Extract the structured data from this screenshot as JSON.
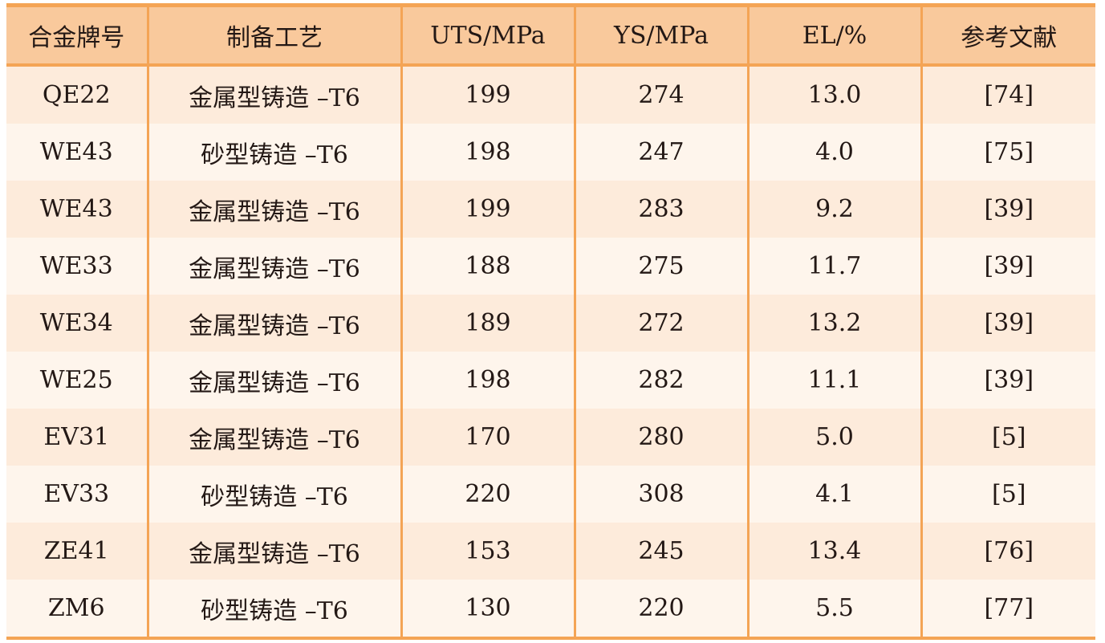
{
  "table": {
    "headers": [
      "合金牌号",
      "制备工艺",
      "UTS/MPa",
      "YS/MPa",
      "EL/%",
      "参考文献"
    ],
    "rows": [
      [
        "QE22",
        "金属型铸造 –T6",
        "199",
        "274",
        "13.0",
        "[74]"
      ],
      [
        "WE43",
        "砂型铸造 –T6",
        "198",
        "247",
        "4.0",
        "[75]"
      ],
      [
        "WE43",
        "金属型铸造 –T6",
        "199",
        "283",
        "9.2",
        "[39]"
      ],
      [
        "WE33",
        "金属型铸造 –T6",
        "188",
        "275",
        "11.7",
        "[39]"
      ],
      [
        "WE34",
        "金属型铸造 –T6",
        "189",
        "272",
        "13.2",
        "[39]"
      ],
      [
        "WE25",
        "金属型铸造 –T6",
        "198",
        "282",
        "11.1",
        "[39]"
      ],
      [
        "EV31",
        "金属型铸造 –T6",
        "170",
        "280",
        "5.0",
        "[5]"
      ],
      [
        "EV33",
        "砂型铸造 –T6",
        "220",
        "308",
        "4.1",
        "[5]"
      ],
      [
        "ZE41",
        "金属型铸造 –T6",
        "153",
        "245",
        "13.4",
        "[76]"
      ],
      [
        "ZM6",
        "砂型铸造 –T6",
        "130",
        "220",
        "5.5",
        "[77]"
      ]
    ]
  },
  "colors": {
    "border": "#f4a455",
    "header_bg": "#f9c99c",
    "row_odd_bg": "#fdebdb",
    "row_even_bg": "#fef5ec",
    "text": "#231815"
  }
}
